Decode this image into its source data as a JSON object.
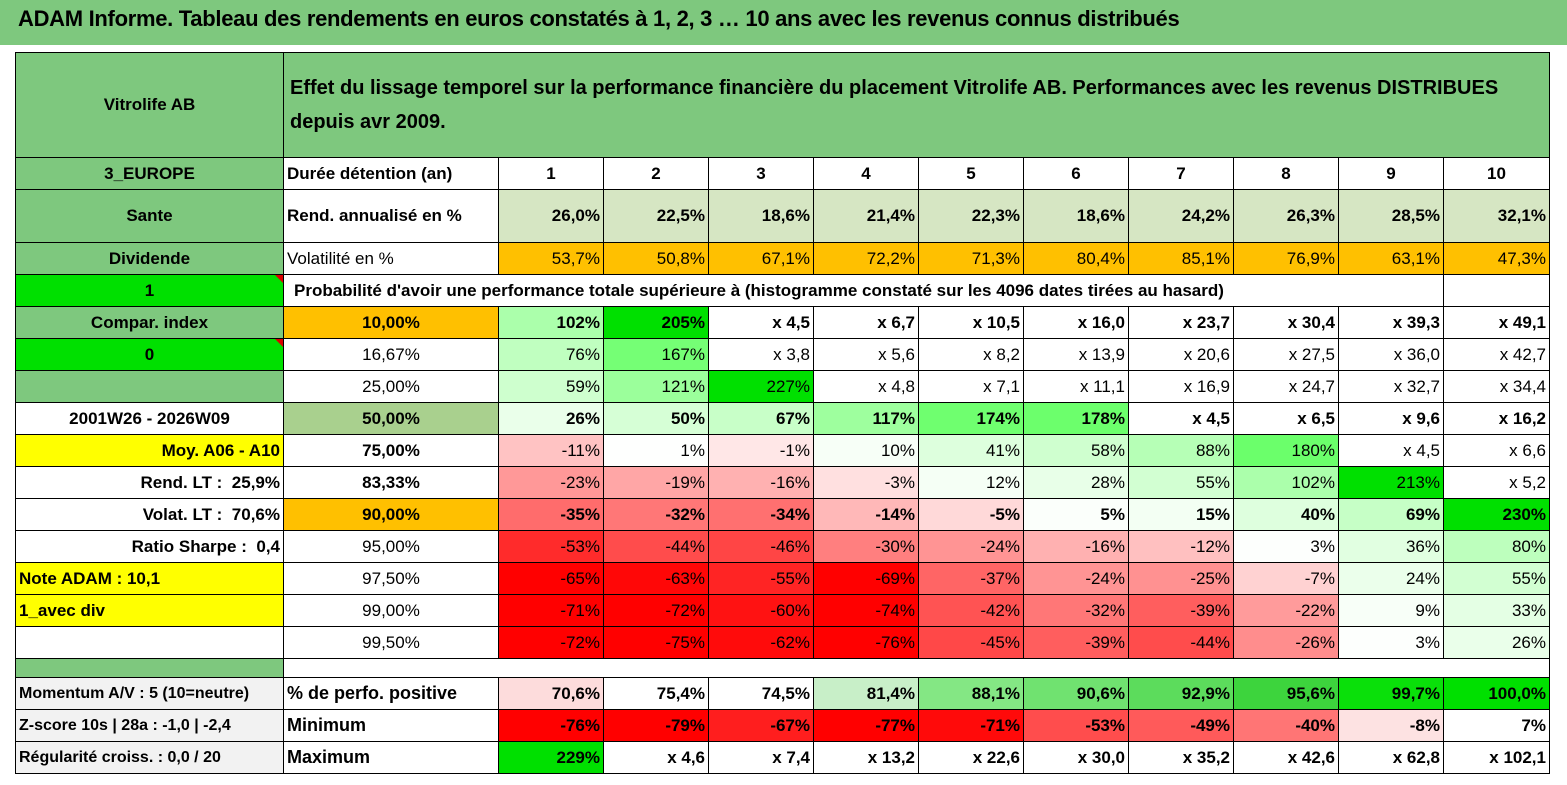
{
  "title": "ADAM Informe. Tableau des rendements en euros constatés à 1, 2, 3 … 10 ans avec les revenus connus distribués",
  "header": {
    "name": "Vitrolife AB",
    "description": "Effet du lissage temporel sur la performance financière du placement Vitrolife AB. Performances avec les revenus DISTRIBUES depuis avr 2009."
  },
  "colors": {
    "header_green": "#7ec87e",
    "bright_green": "#00e000",
    "orange": "#ffc000",
    "yellow": "#ffff00",
    "light_green": "#d6e6c3",
    "red_strong": "#ff0000"
  },
  "side": {
    "region": "3_EUROPE",
    "sector": "Sante",
    "type": "Dividende",
    "flag1": "1",
    "compar_index": "Compar. index",
    "flag0": "0",
    "period": "2001W26 - 2026W09",
    "moy": "Moy. A06 - A10",
    "rend_lt_label": "Rend. LT :",
    "rend_lt_value": "25,9%",
    "volat_lt_label": "Volat. LT :",
    "volat_lt_value": "70,6%",
    "sharpe_label": "Ratio Sharpe :",
    "sharpe_value": "0,4",
    "note": "Note ADAM : 10,1",
    "avec_div": "1_avec div",
    "momentum": "Momentum A/V : 5 (10=neutre)",
    "zscore": "Z-score 10s | 28a : -1,0 | -2,4",
    "regularite": "Régularité croiss. : 0,0 / 20"
  },
  "labels": {
    "duree": "Durée détention (an)",
    "rend": "Rend. annualisé en %",
    "volat": "Volatilité en %",
    "proba": "Probabilité d'avoir une performance totale supérieure à (histogramme constaté sur les 4096 dates tirées au hasard)",
    "perfo_pos": "% de perfo. positive",
    "minimum": "Minimum",
    "maximum": "Maximum"
  },
  "years": [
    "1",
    "2",
    "3",
    "4",
    "5",
    "6",
    "7",
    "8",
    "9",
    "10"
  ],
  "rend": [
    "26,0%",
    "22,5%",
    "18,6%",
    "21,4%",
    "22,3%",
    "18,6%",
    "24,2%",
    "26,3%",
    "28,5%",
    "32,1%"
  ],
  "volat": [
    "53,7%",
    "50,8%",
    "67,1%",
    "72,2%",
    "71,3%",
    "80,4%",
    "85,1%",
    "76,9%",
    "63,1%",
    "47,3%"
  ],
  "prob_rows": [
    {
      "p": "10,00%",
      "v": [
        "102%",
        "205%",
        "x 4,5",
        "x 6,7",
        "x 10,5",
        "x 16,0",
        "x 23,7",
        "x 30,4",
        "x 39,3",
        "x 49,1"
      ]
    },
    {
      "p": "16,67%",
      "v": [
        "76%",
        "167%",
        "x 3,8",
        "x 5,6",
        "x 8,2",
        "x 13,9",
        "x 20,6",
        "x 27,5",
        "x 36,0",
        "x 42,7"
      ]
    },
    {
      "p": "25,00%",
      "v": [
        "59%",
        "121%",
        "227%",
        "x 4,8",
        "x 7,1",
        "x 11,1",
        "x 16,9",
        "x 24,7",
        "x 32,7",
        "x 34,4"
      ]
    },
    {
      "p": "50,00%",
      "v": [
        "26%",
        "50%",
        "67%",
        "117%",
        "174%",
        "178%",
        "x 4,5",
        "x 6,5",
        "x 9,6",
        "x 16,2"
      ]
    },
    {
      "p": "75,00%",
      "v": [
        "-11%",
        "1%",
        "-1%",
        "10%",
        "41%",
        "58%",
        "88%",
        "180%",
        "x 4,5",
        "x 6,6"
      ]
    },
    {
      "p": "83,33%",
      "v": [
        "-23%",
        "-19%",
        "-16%",
        "-3%",
        "12%",
        "28%",
        "55%",
        "102%",
        "213%",
        "x 5,2"
      ]
    },
    {
      "p": "90,00%",
      "v": [
        "-35%",
        "-32%",
        "-34%",
        "-14%",
        "-5%",
        "5%",
        "15%",
        "40%",
        "69%",
        "230%"
      ]
    },
    {
      "p": "95,00%",
      "v": [
        "-53%",
        "-44%",
        "-46%",
        "-30%",
        "-24%",
        "-16%",
        "-12%",
        "3%",
        "36%",
        "80%"
      ]
    },
    {
      "p": "97,50%",
      "v": [
        "-65%",
        "-63%",
        "-55%",
        "-69%",
        "-37%",
        "-24%",
        "-25%",
        "-7%",
        "24%",
        "55%"
      ]
    },
    {
      "p": "99,00%",
      "v": [
        "-71%",
        "-72%",
        "-60%",
        "-74%",
        "-42%",
        "-32%",
        "-39%",
        "-22%",
        "9%",
        "33%"
      ]
    },
    {
      "p": "99,50%",
      "v": [
        "-72%",
        "-75%",
        "-62%",
        "-76%",
        "-45%",
        "-39%",
        "-44%",
        "-26%",
        "3%",
        "26%"
      ]
    }
  ],
  "perfo_pos": [
    "70,6%",
    "75,4%",
    "74,5%",
    "81,4%",
    "88,1%",
    "90,6%",
    "92,9%",
    "95,6%",
    "99,7%",
    "100,0%"
  ],
  "minimum": [
    "-76%",
    "-79%",
    "-67%",
    "-77%",
    "-71%",
    "-53%",
    "-49%",
    "-40%",
    "-8%",
    "7%"
  ],
  "maximum": [
    "229%",
    "x 4,6",
    "x 7,4",
    "x 13,2",
    "x 22,6",
    "x 30,0",
    "x 35,2",
    "x 42,6",
    "x 62,8",
    "x 102,1"
  ]
}
